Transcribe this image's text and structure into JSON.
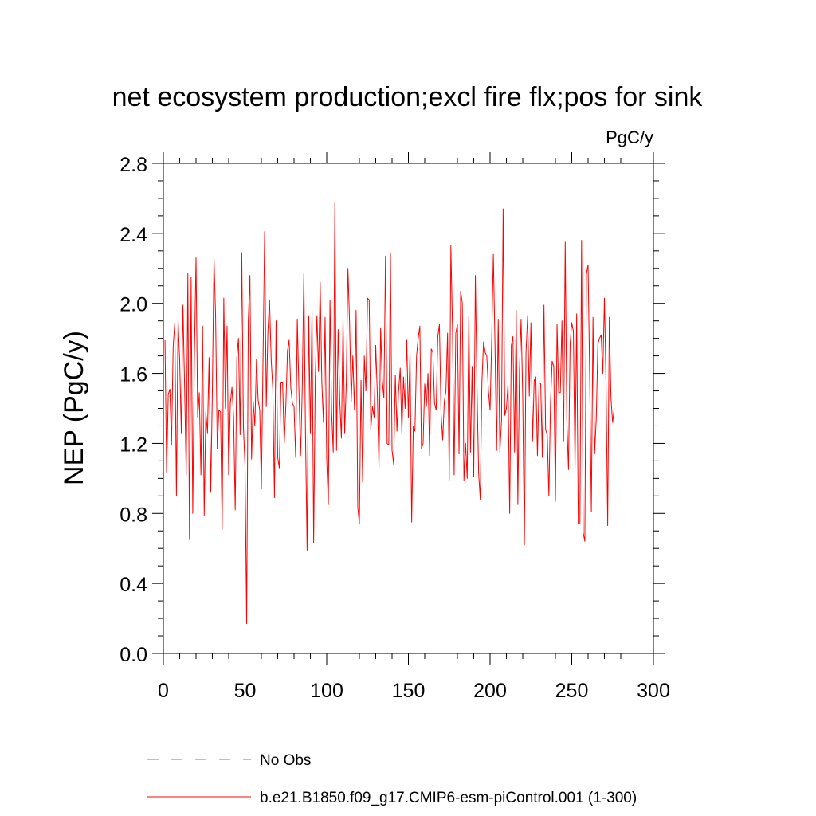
{
  "chart_data": {
    "type": "line",
    "title": "net ecosystem production;excl fire flx;pos for sink",
    "units_label": "PgC/y",
    "ylabel": "NEP  (PgC/y)",
    "xlabel": "",
    "xlim": [
      0,
      300
    ],
    "ylim": [
      0.0,
      2.8
    ],
    "x_ticks": [
      0,
      50,
      100,
      150,
      200,
      250,
      300
    ],
    "x_tick_labels": [
      "0",
      "50",
      "100",
      "150",
      "200",
      "250",
      "300"
    ],
    "y_ticks": [
      0.0,
      0.4,
      0.8,
      1.2,
      1.6,
      2.0,
      2.4,
      2.8
    ],
    "y_tick_labels": [
      "0.0",
      "0.4",
      "0.8",
      "1.2",
      "1.6",
      "2.0",
      "2.4",
      "2.8"
    ],
    "grid": false,
    "legend": [
      {
        "label": "No Obs",
        "color": "#7777cc",
        "style": "dashed"
      },
      {
        "label": "b.e21.B1850.f09_g17.CMIP6-esm-piControl.001 (1-300)",
        "color": "#ff0000",
        "style": "solid"
      }
    ],
    "series": [
      {
        "name": "b.e21.B1850.f09_g17.CMIP6-esm-piControl.001 (1-300)",
        "color": "#ff0000",
        "x_start": 1,
        "x_step": 1,
        "values": [
          1.79,
          1.03,
          1.48,
          1.51,
          1.19,
          1.75,
          1.89,
          0.9,
          1.91,
          1.67,
          1.26,
          1.99,
          1.53,
          1.02,
          2.17,
          0.65,
          2.15,
          0.8,
          1.7,
          2.26,
          1.35,
          1.49,
          1.02,
          1.87,
          0.79,
          1.38,
          1.26,
          1.69,
          0.92,
          1.5,
          2.26,
          1.92,
          1.17,
          1.39,
          1.38,
          0.71,
          2.03,
          1.4,
          1.87,
          1.02,
          1.43,
          1.52,
          1.35,
          0.82,
          1.69,
          1.8,
          1.25,
          2.29,
          1.3,
          1.07,
          0.17,
          1.9,
          2.16,
          1.11,
          1.44,
          1.3,
          1.68,
          1.45,
          1.39,
          0.94,
          1.67,
          2.41,
          1.41,
          1.84,
          2.02,
          1.68,
          1.51,
          0.89,
          1.9,
          1.12,
          1.06,
          1.55,
          1.55,
          1.2,
          1.42,
          1.73,
          1.79,
          1.52,
          1.43,
          1.41,
          1.12,
          1.91,
          1.5,
          1.13,
          1.5,
          2.17,
          1.26,
          0.59,
          1.93,
          1.26,
          1.96,
          0.63,
          1.57,
          1.93,
          1.61,
          2.12,
          1.55,
          1.32,
          1.92,
          1.11,
          0.85,
          2.02,
          1.38,
          1.15,
          2.58,
          1.16,
          1.85,
          1.44,
          1.23,
          1.91,
          1.26,
          1.55,
          2.2,
          1.89,
          1.44,
          1.7,
          1.39,
          1.96,
          0.84,
          0.74,
          1.56,
          0.98,
          1.7,
          1.5,
          2.03,
          2.02,
          1.28,
          1.41,
          1.35,
          1.76,
          1.48,
          1.06,
          1.86,
          1.56,
          1.46,
          2.27,
          1.2,
          1.19,
          2.29,
          1.16,
          1.08,
          1.59,
          1.27,
          1.5,
          1.63,
          1.26,
          1.58,
          1.4,
          1.79,
          1.35,
          1.72,
          0.75,
          1.3,
          1.27,
          1.7,
          1.8,
          1.87,
          1.17,
          1.2,
          1.54,
          1.41,
          1.6,
          1.13,
          1.74,
          1.72,
          1.43,
          1.39,
          1.81,
          1.88,
          1.37,
          1.22,
          1.44,
          1.5,
          1.83,
          0.99,
          2.33,
          1.86,
          1.02,
          1.83,
          1.88,
          1.14,
          2.07,
          2.0,
          0.99,
          1.2,
          1.0,
          1.93,
          1.15,
          1.64,
          1.01,
          2.16,
          1.51,
          1.03,
          0.88,
          1.55,
          1.78,
          1.72,
          1.7,
          1.5,
          1.39,
          1.79,
          2.28,
          1.77,
          1.16,
          1.91,
          1.15,
          1.33,
          2.54,
          1.36,
          1.4,
          1.54,
          0.8,
          1.76,
          1.81,
          1.15,
          1.96,
          0.85,
          1.62,
          1.91,
          1.46,
          0.62,
          1.72,
          1.93,
          1.47,
          1.89,
          1.21,
          1.56,
          1.58,
          1.13,
          1.55,
          1.54,
          1.12,
          1.99,
          1.28,
          1.25,
          0.9,
          1.43,
          1.67,
          1.64,
          0.87,
          1.88,
          1.49,
          1.49,
          1.9,
          1.21,
          2.35,
          1.33,
          1.05,
          1.77,
          1.89,
          1.84,
          1.06,
          1.94,
          0.74,
          0.74,
          2.36,
          0.69,
          0.64,
          2.17,
          2.22,
          1.57,
          0.81,
          1.92,
          1.14,
          1.34,
          1.77,
          1.8,
          1.82,
          1.6,
          2.03,
          1.54,
          0.73,
          1.92,
          1.46,
          1.32,
          1.4
        ]
      }
    ]
  }
}
